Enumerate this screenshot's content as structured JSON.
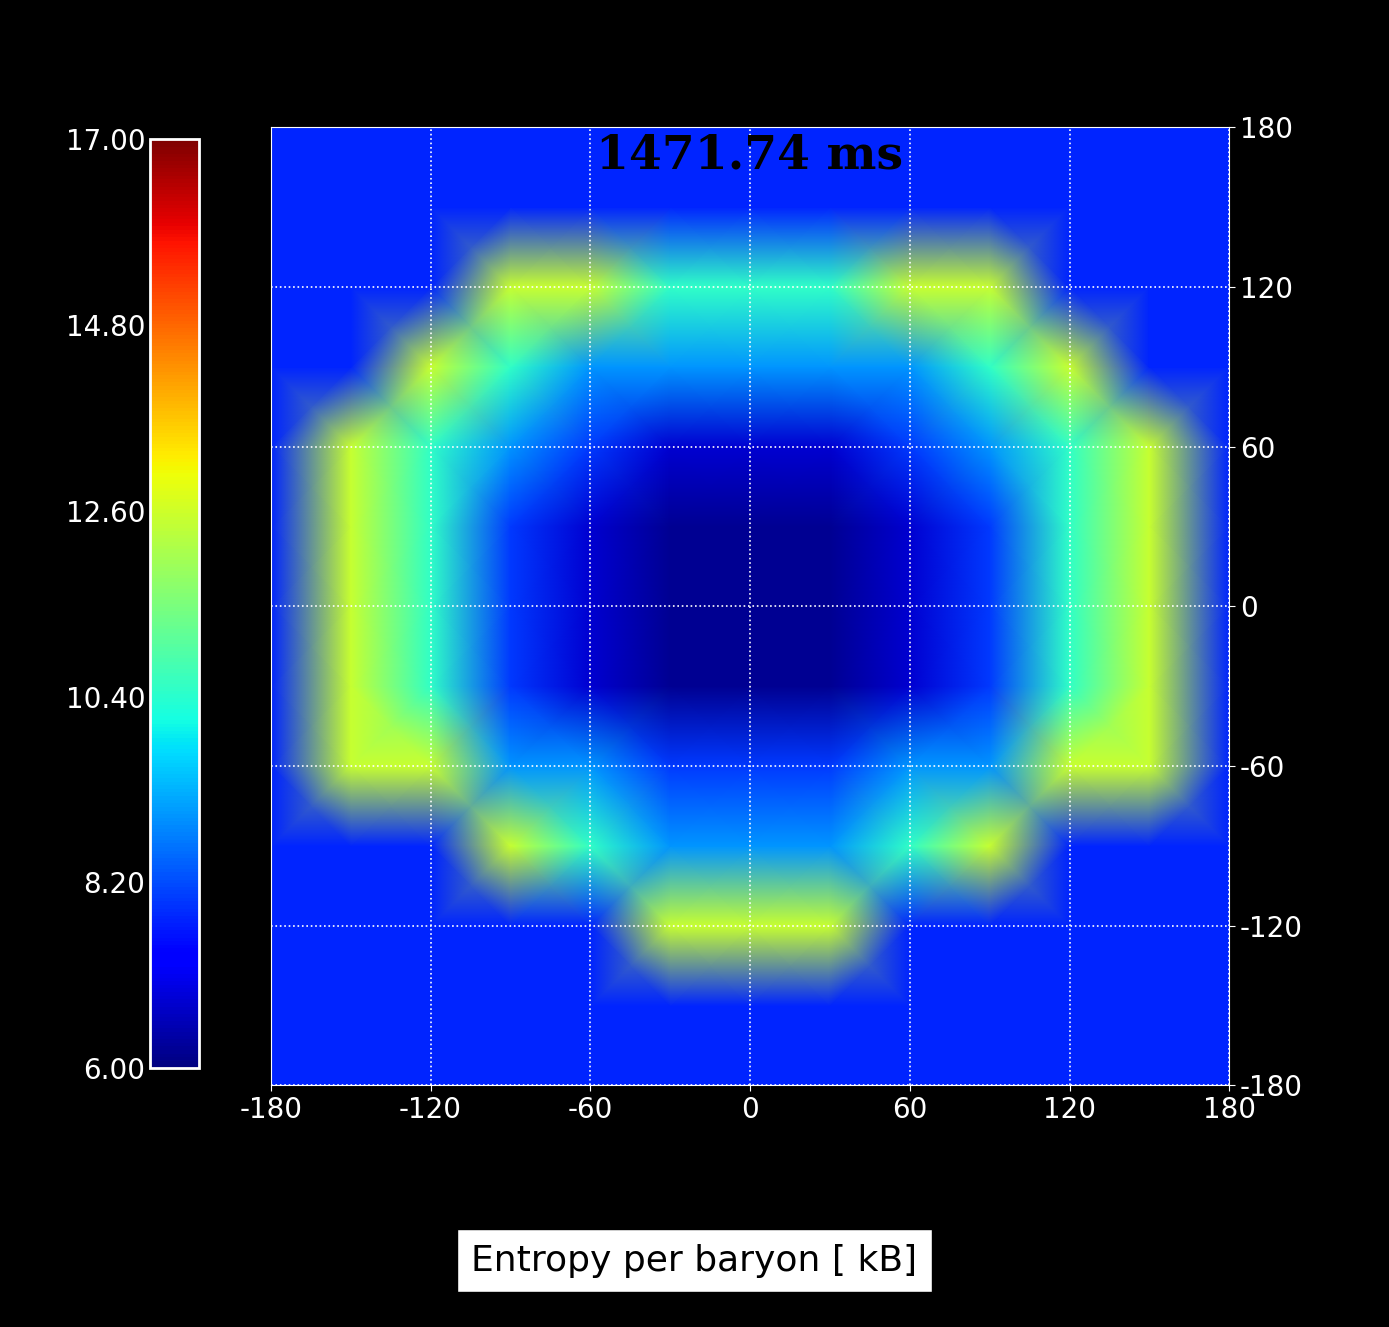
{
  "chart_data": {
    "type": "heatmap",
    "title": "1471.74 ms",
    "colorbar_label": "Entropy per baryon [ kB]",
    "x": [
      -180,
      -150,
      -120,
      -90,
      -60,
      -30,
      0,
      30,
      60,
      90,
      120,
      150,
      180
    ],
    "y": [
      -180,
      -150,
      -120,
      -90,
      -60,
      -30,
      0,
      30,
      60,
      90,
      120,
      150,
      180
    ],
    "values": [
      [
        7.8,
        7.8,
        7.8,
        7.8,
        7.8,
        7.8,
        7.8,
        7.8,
        7.8,
        7.8,
        7.8,
        7.8,
        7.8
      ],
      [
        7.8,
        7.8,
        7.8,
        7.8,
        7.8,
        7.8,
        7.8,
        7.8,
        7.8,
        7.8,
        7.8,
        7.8,
        7.8
      ],
      [
        7.8,
        7.8,
        7.8,
        7.8,
        7.8,
        12.5,
        12.5,
        12.5,
        7.8,
        7.8,
        7.8,
        7.8,
        7.8
      ],
      [
        7.8,
        7.8,
        7.8,
        12.5,
        10.5,
        9.0,
        9.0,
        9.0,
        10.5,
        12.5,
        7.8,
        7.8,
        7.8
      ],
      [
        7.8,
        12.5,
        12.5,
        9.0,
        9.0,
        8.0,
        8.0,
        8.0,
        9.0,
        9.0,
        12.5,
        12.5,
        7.8
      ],
      [
        7.8,
        12.5,
        10.5,
        8.0,
        6.8,
        6.2,
        6.2,
        6.2,
        6.8,
        8.0,
        10.5,
        12.5,
        7.8
      ],
      [
        7.8,
        12.5,
        10.5,
        8.0,
        6.8,
        6.2,
        6.2,
        6.2,
        6.8,
        8.0,
        10.5,
        12.5,
        7.8
      ],
      [
        7.8,
        12.5,
        10.5,
        8.0,
        6.8,
        6.2,
        6.2,
        6.2,
        6.8,
        8.0,
        10.5,
        12.5,
        7.8
      ],
      [
        7.8,
        12.5,
        10.5,
        9.0,
        8.0,
        6.8,
        6.8,
        6.8,
        8.0,
        9.0,
        10.5,
        12.5,
        7.8
      ],
      [
        7.8,
        7.8,
        12.5,
        10.5,
        9.0,
        9.0,
        9.0,
        9.0,
        9.0,
        10.5,
        12.5,
        7.8,
        7.8
      ],
      [
        7.8,
        7.8,
        7.8,
        12.5,
        12.5,
        10.5,
        10.5,
        10.5,
        12.5,
        12.5,
        7.8,
        7.8,
        7.8
      ],
      [
        7.8,
        7.8,
        7.8,
        7.8,
        7.8,
        7.8,
        7.8,
        7.8,
        7.8,
        7.8,
        7.8,
        7.8,
        7.8
      ],
      [
        7.8,
        7.8,
        7.8,
        7.8,
        7.8,
        7.8,
        7.8,
        7.8,
        7.8,
        7.8,
        7.8,
        7.8,
        7.8
      ]
    ],
    "xlim": [
      -180,
      180
    ],
    "ylim": [
      -180,
      180
    ],
    "xticks": [
      -180,
      -120,
      -60,
      0,
      60,
      120,
      180
    ],
    "yticks": [
      -180,
      -120,
      -60,
      0,
      60,
      120,
      180
    ],
    "colorbar_range": [
      6,
      17
    ],
    "colorbar_ticks": [
      {
        "value": 6,
        "label": "6.00"
      },
      {
        "value": 8.2,
        "label": "8.20"
      },
      {
        "value": 10.4,
        "label": "10.40"
      },
      {
        "value": 12.6,
        "label": "12.60"
      },
      {
        "value": 14.8,
        "label": "14.80"
      },
      {
        "value": 17,
        "label": "17.00"
      }
    ],
    "grid": true
  }
}
